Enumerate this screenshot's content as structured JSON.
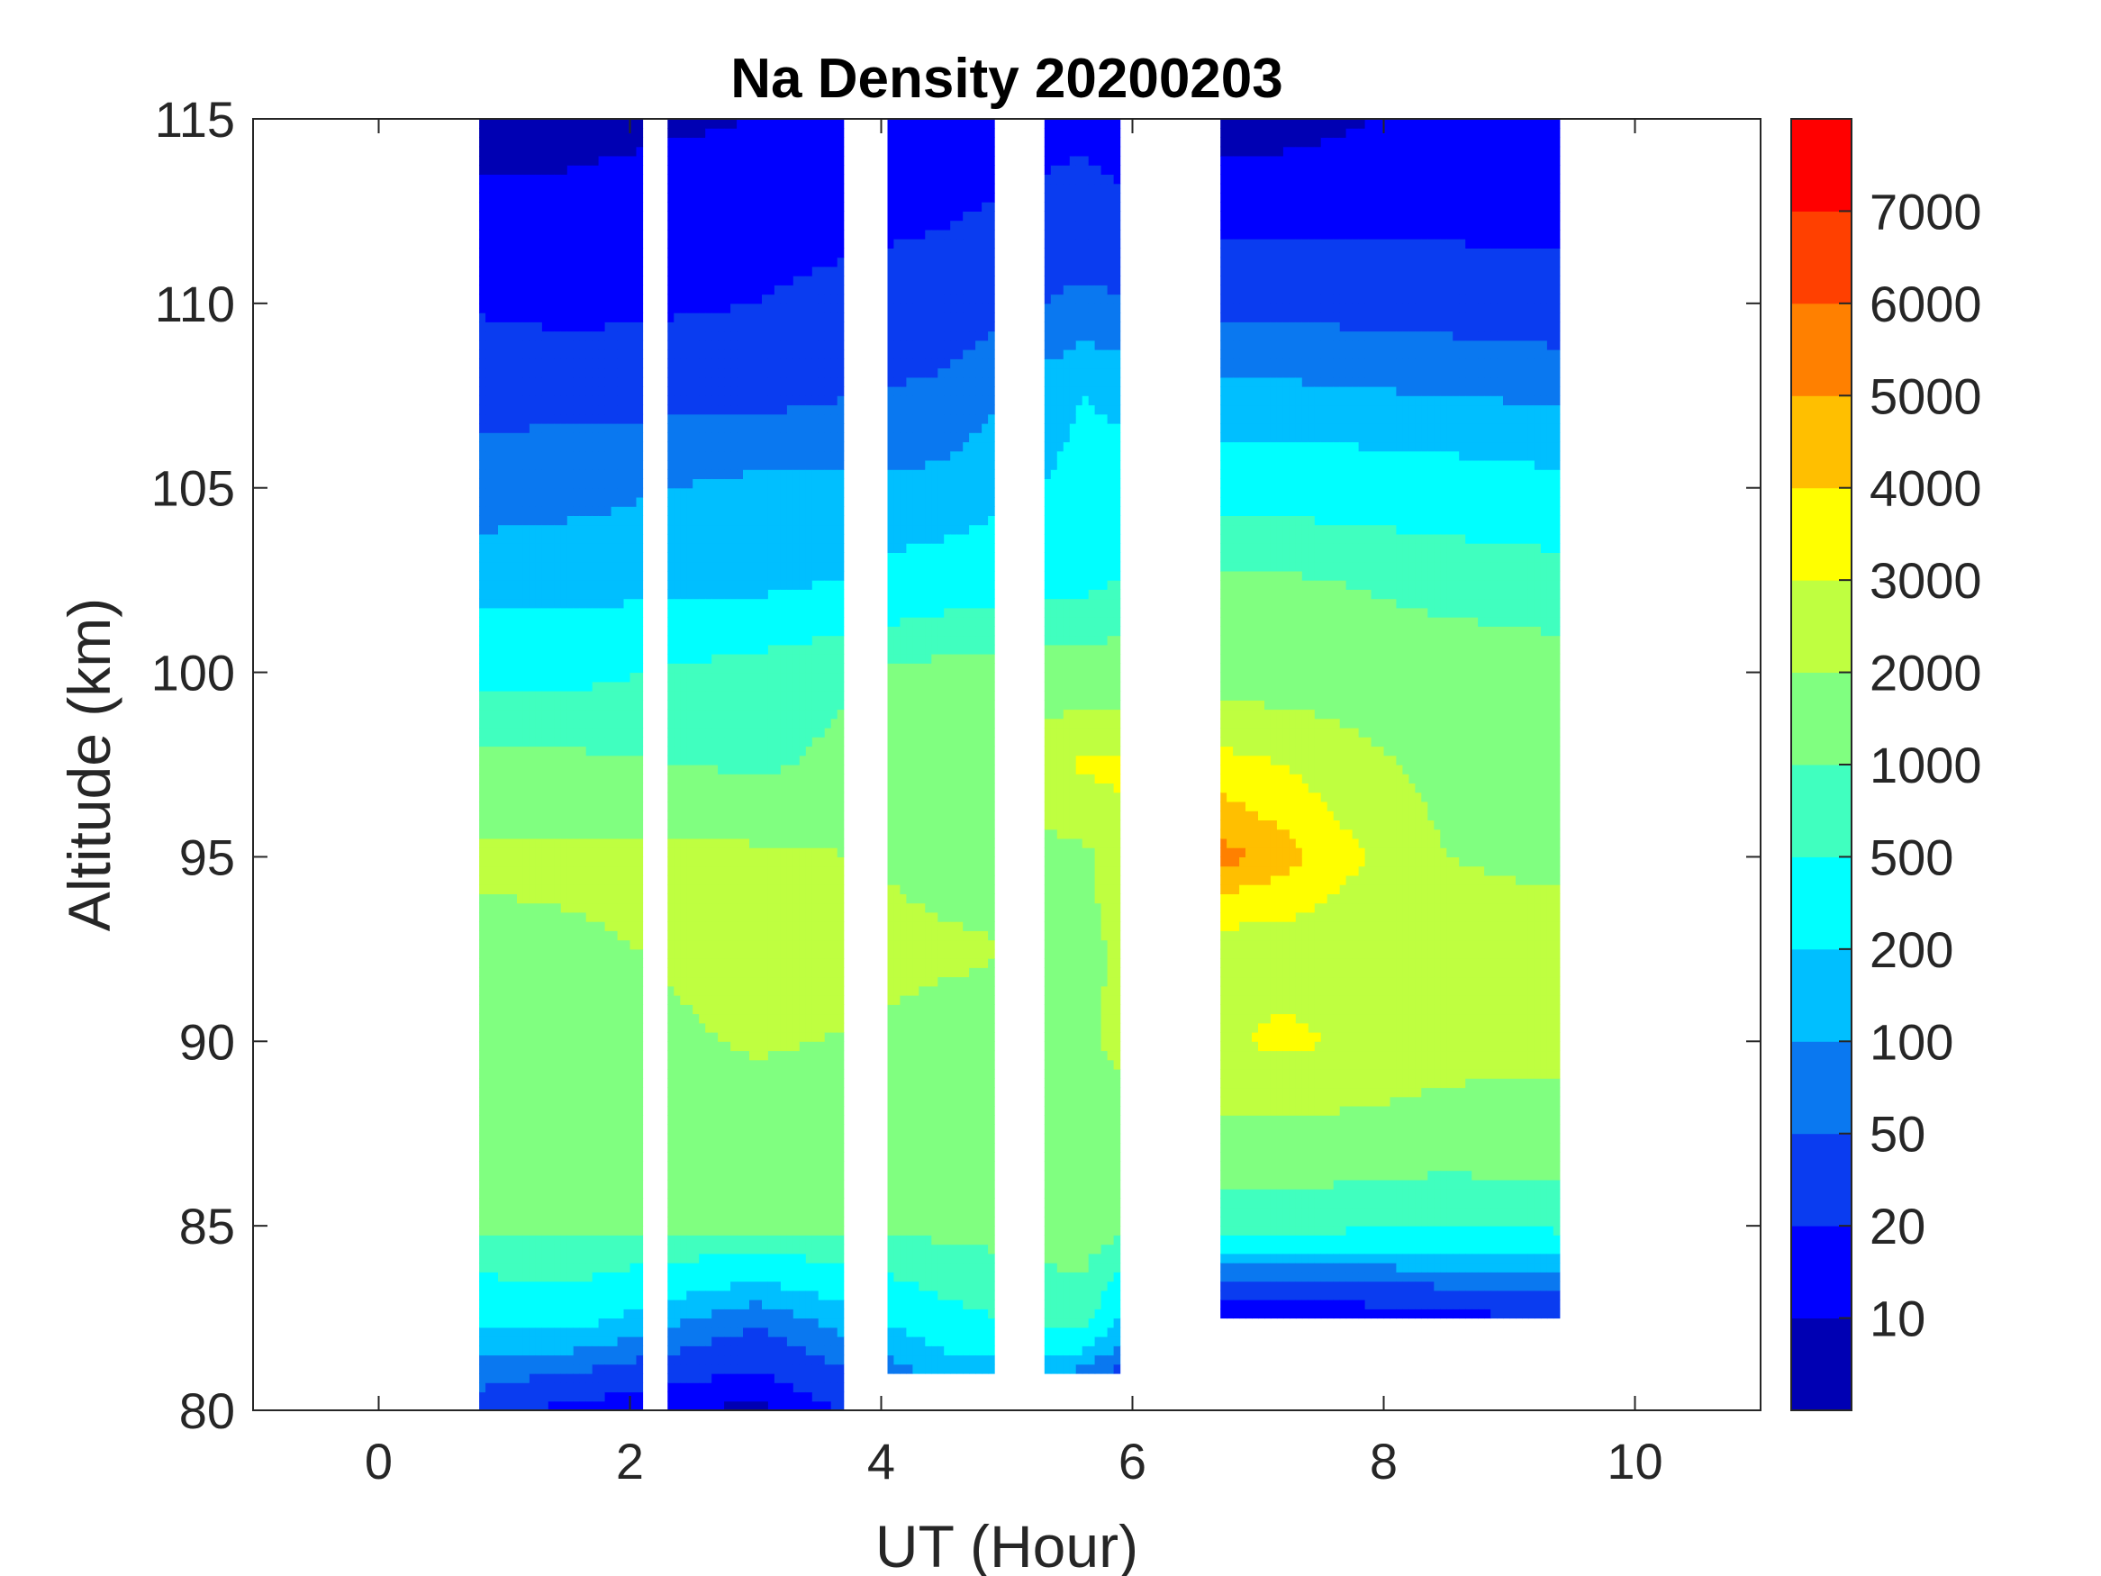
{
  "chart_data": {
    "type": "heatmap",
    "subtype": "filled-contour",
    "title": "Na Density 20200203",
    "xlabel": "UT (Hour)",
    "ylabel": "Altitude (km)",
    "xlim": [
      -1,
      11
    ],
    "ylim": [
      80,
      115
    ],
    "xticks": [
      "0",
      "2",
      "4",
      "6",
      "8",
      "10"
    ],
    "xtick_values": [
      0,
      2,
      4,
      6,
      8,
      10
    ],
    "yticks": [
      "80",
      "85",
      "90",
      "95",
      "100",
      "105",
      "110",
      "115"
    ],
    "ytick_values": [
      80,
      85,
      90,
      95,
      100,
      105,
      110,
      115
    ],
    "colorbar": {
      "levels": [
        10,
        20,
        50,
        100,
        200,
        500,
        1000,
        2000,
        3000,
        4000,
        5000,
        6000,
        7000
      ],
      "labels": [
        "10",
        "20",
        "50",
        "100",
        "200",
        "500",
        "1000",
        "2000",
        "3000",
        "4000",
        "5000",
        "6000",
        "7000"
      ],
      "colors": [
        "#0000b3",
        "#0000ff",
        "#0a3cf0",
        "#0a78f0",
        "#00bfff",
        "#00ffff",
        "#40ffbf",
        "#80ff80",
        "#bfff40",
        "#ffff00",
        "#ffbf00",
        "#ff8000",
        "#ff4000",
        "#ff0000"
      ]
    },
    "data_segments": [
      {
        "start": 0.8,
        "end": 2.1,
        "bottom": 80
      },
      {
        "start": 2.3,
        "end": 3.7,
        "bottom": 80
      },
      {
        "start": 4.05,
        "end": 4.9,
        "bottom": 81
      },
      {
        "start": 5.3,
        "end": 5.9,
        "bottom": 81
      },
      {
        "start": 6.7,
        "end": 9.4,
        "bottom": 82.5
      }
    ],
    "altitudes": [
      80,
      82.5,
      85,
      87.5,
      90,
      92.5,
      95,
      97.5,
      100,
      102.5,
      105,
      107.5,
      110,
      112.5,
      115
    ],
    "profiles": [
      {
        "time": 0.8,
        "density": [
          30,
          250,
          1100,
          1500,
          1500,
          1700,
          2200,
          1200,
          400,
          150,
          70,
          40,
          18,
          12,
          8
        ]
      },
      {
        "time": 1.5,
        "density": [
          15,
          300,
          1200,
          1500,
          1600,
          1800,
          2300,
          1200,
          400,
          150,
          80,
          40,
          15,
          12,
          8
        ]
      },
      {
        "time": 3.0,
        "density": [
          8,
          60,
          1200,
          1600,
          2100,
          2400,
          2300,
          900,
          700,
          150,
          120,
          40,
          20,
          15,
          10
        ]
      },
      {
        "time": 4.5,
        "density": [
          60,
          400,
          1200,
          1700,
          1800,
          2100,
          1800,
          1500,
          1300,
          300,
          120,
          60,
          30,
          18,
          12
        ]
      },
      {
        "time": 5.6,
        "density": [
          20,
          700,
          1500,
          1800,
          1900,
          1900,
          1800,
          3200,
          1500,
          400,
          250,
          200,
          60,
          30,
          15
        ]
      },
      {
        "time": 6.7,
        "density": [
          5,
          8,
          700,
          1800,
          2800,
          2500,
          5500,
          3500,
          1500,
          1100,
          350,
          120,
          40,
          15,
          8
        ]
      },
      {
        "time": 7.2,
        "density": [
          5,
          8,
          700,
          1800,
          3300,
          2500,
          4500,
          3000,
          1600,
          1100,
          350,
          120,
          40,
          15,
          8
        ]
      },
      {
        "time": 8.5,
        "density": [
          5,
          15,
          500,
          1700,
          2300,
          2200,
          2000,
          1700,
          1400,
          800,
          300,
          100,
          35,
          15,
          12
        ]
      },
      {
        "time": 9.4,
        "density": [
          5,
          20,
          600,
          1700,
          2200,
          2200,
          1900,
          1700,
          1300,
          700,
          250,
          90,
          30,
          15,
          12
        ]
      }
    ]
  }
}
